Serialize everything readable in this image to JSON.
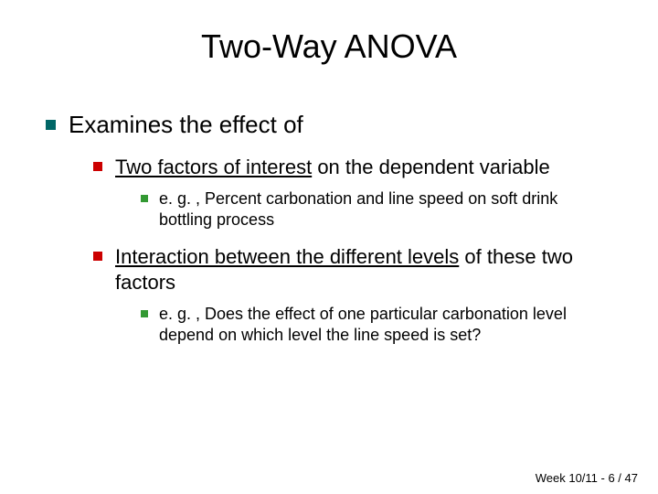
{
  "title": "Two-Way ANOVA",
  "bullets": {
    "l1": "Examines the effect of",
    "l2a_u": "Two factors of interest",
    "l2a_rest": " on the dependent variable",
    "l3a": "e. g. , Percent carbonation and line speed on soft drink bottling process",
    "l2b_u": "Interaction between the different levels",
    "l2b_rest": " of these two factors",
    "l3b": "e. g. , Does the effect of one particular carbonation level depend on which level the line speed is set?"
  },
  "footer": "Week 10/11 - 6 / 47",
  "colors": {
    "bullet_l1": "#006666",
    "bullet_l2": "#cc0000",
    "bullet_l3": "#339933",
    "text": "#000000",
    "background": "#ffffff"
  },
  "fontsize": {
    "title": 36,
    "l1": 26,
    "l2": 22,
    "l3": 18,
    "footer": 13
  }
}
